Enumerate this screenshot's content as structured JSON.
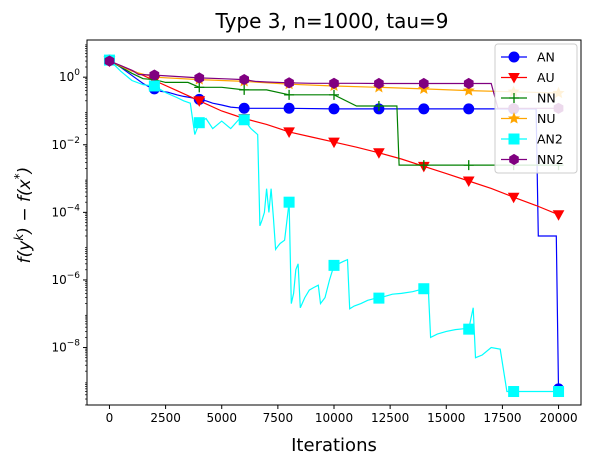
{
  "chart_data": {
    "type": "line",
    "title": "Type 3, n=1000, tau=9",
    "xlabel": "Iterations",
    "ylabel_main": "f(y",
    "ylabel_sup1": "k",
    "ylabel_mid": ") − f(x",
    "ylabel_sup2": "*",
    "ylabel_end": ")",
    "xlim": [
      -1000,
      21000
    ],
    "ylim_log10": [
      -9.7,
      1.1
    ],
    "yscale": "log",
    "xticks": [
      0,
      2500,
      5000,
      7500,
      10000,
      12500,
      15000,
      17500,
      20000
    ],
    "xtick_labels": [
      "0",
      "2500",
      "5000",
      "7500",
      "10000",
      "12500",
      "15000",
      "17500",
      "20000"
    ],
    "yticks_log10": [
      0,
      -2,
      -4,
      -6,
      -8
    ],
    "ytick_labels": [
      {
        "base": "10",
        "exp": "0"
      },
      {
        "base": "10",
        "exp": "−2"
      },
      {
        "base": "10",
        "exp": "−4"
      },
      {
        "base": "10",
        "exp": "−6"
      },
      {
        "base": "10",
        "exp": "−8"
      }
    ],
    "legend_position": "top-right",
    "grid": false,
    "series": [
      {
        "name": "AN",
        "color": "#0000ff",
        "marker": "circle",
        "points": [
          [
            0,
            3.2
          ],
          [
            400,
            2.2
          ],
          [
            800,
            1.4
          ],
          [
            1200,
            0.9
          ],
          [
            1500,
            0.65
          ],
          [
            1800,
            0.5
          ],
          [
            2000,
            0.45
          ],
          [
            2300,
            0.38
          ],
          [
            2600,
            0.36
          ],
          [
            3000,
            0.3
          ],
          [
            3300,
            0.27
          ],
          [
            3600,
            0.25
          ],
          [
            4000,
            0.22
          ],
          [
            4300,
            0.2
          ],
          [
            4600,
            0.17
          ],
          [
            5000,
            0.15
          ],
          [
            5400,
            0.13
          ],
          [
            6000,
            0.12
          ],
          [
            8000,
            0.12
          ],
          [
            10000,
            0.115
          ],
          [
            12000,
            0.115
          ],
          [
            14000,
            0.115
          ],
          [
            16000,
            0.115
          ],
          [
            18000,
            0.115
          ],
          [
            19000,
            0.115
          ],
          [
            19100,
            2e-05
          ],
          [
            19900,
            2e-05
          ],
          [
            20000,
            6e-10
          ]
        ],
        "markers": [
          [
            0,
            3.2
          ],
          [
            2000,
            0.45
          ],
          [
            4000,
            0.22
          ],
          [
            6000,
            0.12
          ],
          [
            8000,
            0.12
          ],
          [
            10000,
            0.115
          ],
          [
            12000,
            0.115
          ],
          [
            14000,
            0.115
          ],
          [
            16000,
            0.115
          ],
          [
            18000,
            0.115
          ],
          [
            20000,
            6e-10
          ]
        ]
      },
      {
        "name": "AU",
        "color": "#ff0000",
        "marker": "triangle-down",
        "points": [
          [
            0,
            3.0
          ],
          [
            1000,
            1.6
          ],
          [
            2000,
            0.8
          ],
          [
            3000,
            0.4
          ],
          [
            4000,
            0.2
          ],
          [
            5000,
            0.1
          ],
          [
            6000,
            0.06
          ],
          [
            7000,
            0.04
          ],
          [
            8000,
            0.024
          ],
          [
            9000,
            0.017
          ],
          [
            10000,
            0.012
          ],
          [
            11000,
            0.0085
          ],
          [
            12000,
            0.0058
          ],
          [
            13000,
            0.0038
          ],
          [
            14000,
            0.0023
          ],
          [
            15000,
            0.0014
          ],
          [
            16000,
            0.00085
          ],
          [
            17000,
            0.00051
          ],
          [
            18000,
            0.00028
          ],
          [
            19000,
            0.00016
          ],
          [
            20000,
            8.5e-05
          ]
        ],
        "markers": [
          [
            0,
            3.0
          ],
          [
            2000,
            0.8
          ],
          [
            4000,
            0.2
          ],
          [
            6000,
            0.06
          ],
          [
            8000,
            0.024
          ],
          [
            10000,
            0.012
          ],
          [
            12000,
            0.0058
          ],
          [
            14000,
            0.0023
          ],
          [
            16000,
            0.00085
          ],
          [
            18000,
            0.00028
          ],
          [
            20000,
            8.5e-05
          ]
        ]
      },
      {
        "name": "NN",
        "color": "#008000",
        "marker": "plus",
        "points": [
          [
            0,
            3.0
          ],
          [
            500,
            2.0
          ],
          [
            1000,
            1.3
          ],
          [
            1500,
            0.9
          ],
          [
            2000,
            0.85
          ],
          [
            2500,
            0.7
          ],
          [
            3000,
            0.7
          ],
          [
            3500,
            0.7
          ],
          [
            4000,
            0.5
          ],
          [
            5000,
            0.5
          ],
          [
            6000,
            0.42
          ],
          [
            7000,
            0.42
          ],
          [
            8000,
            0.3
          ],
          [
            9000,
            0.3
          ],
          [
            10000,
            0.3
          ],
          [
            11000,
            0.14
          ],
          [
            12000,
            0.14
          ],
          [
            12800,
            0.14
          ],
          [
            12900,
            0.0025
          ],
          [
            14000,
            0.0025
          ],
          [
            16000,
            0.0025
          ],
          [
            18000,
            0.0025
          ],
          [
            20000,
            0.0025
          ]
        ],
        "markers": [
          [
            4000,
            0.5
          ],
          [
            6000,
            0.42
          ],
          [
            8000,
            0.3
          ],
          [
            10000,
            0.3
          ],
          [
            12000,
            0.14
          ],
          [
            14000,
            0.0025
          ],
          [
            16000,
            0.0025
          ],
          [
            18000,
            0.0025
          ],
          [
            20000,
            0.0025
          ]
        ]
      },
      {
        "name": "NU",
        "color": "#ffa500",
        "marker": "star",
        "points": [
          [
            0,
            3.0
          ],
          [
            1000,
            1.5
          ],
          [
            2000,
            1.0
          ],
          [
            4000,
            0.85
          ],
          [
            6000,
            0.75
          ],
          [
            8000,
            0.62
          ],
          [
            10000,
            0.55
          ],
          [
            12000,
            0.5
          ],
          [
            14000,
            0.45
          ],
          [
            16000,
            0.4
          ],
          [
            18000,
            0.37
          ],
          [
            20000,
            0.34
          ]
        ],
        "markers": [
          [
            4000,
            0.85
          ],
          [
            6000,
            0.75
          ],
          [
            8000,
            0.62
          ],
          [
            10000,
            0.55
          ],
          [
            12000,
            0.5
          ],
          [
            14000,
            0.45
          ],
          [
            16000,
            0.4
          ],
          [
            18000,
            0.37
          ],
          [
            20000,
            0.34
          ]
        ]
      },
      {
        "name": "AN2",
        "color": "#00ffff",
        "marker": "square",
        "points": [
          [
            0,
            3.2
          ],
          [
            500,
            1.5
          ],
          [
            1000,
            0.8
          ],
          [
            1500,
            0.6
          ],
          [
            2000,
            0.55
          ],
          [
            2500,
            0.35
          ],
          [
            3000,
            0.25
          ],
          [
            3300,
            0.2
          ],
          [
            3600,
            0.17
          ],
          [
            3800,
            0.02
          ],
          [
            4000,
            0.045
          ],
          [
            4300,
            0.06
          ],
          [
            4600,
            0.03
          ],
          [
            5000,
            0.05
          ],
          [
            5400,
            0.03
          ],
          [
            5800,
            0.06
          ],
          [
            6000,
            0.055
          ],
          [
            6300,
            0.03
          ],
          [
            6600,
            0.02
          ],
          [
            6700,
            4e-05
          ],
          [
            6800,
            6e-05
          ],
          [
            6900,
            0.0001
          ],
          [
            7000,
            0.0005
          ],
          [
            7100,
            0.0001
          ],
          [
            7200,
            0.0005
          ],
          [
            7300,
            7e-05
          ],
          [
            7400,
            8e-06
          ],
          [
            7500,
            1e-05
          ],
          [
            7600,
            1.2e-05
          ],
          [
            7800,
            1.5e-05
          ],
          [
            8000,
            0.0002
          ],
          [
            8100,
            2e-07
          ],
          [
            8200,
            4e-07
          ],
          [
            8300,
            2e-06
          ],
          [
            8400,
            3e-06
          ],
          [
            8500,
            1.5e-07
          ],
          [
            8700,
            3e-07
          ],
          [
            8900,
            5e-07
          ],
          [
            9100,
            6e-07
          ],
          [
            9300,
            7e-07
          ],
          [
            9400,
            2e-07
          ],
          [
            9600,
            3e-07
          ],
          [
            9800,
            1e-06
          ],
          [
            10000,
            2.7e-06
          ],
          [
            10200,
            3e-06
          ],
          [
            10400,
            3.5e-06
          ],
          [
            10600,
            4e-06
          ],
          [
            10700,
            1.4e-07
          ],
          [
            10900,
            1.7e-07
          ],
          [
            11200,
            2e-07
          ],
          [
            11500,
            2.5e-07
          ],
          [
            11800,
            2.8e-07
          ],
          [
            12000,
            2.9e-07
          ],
          [
            12300,
            3.3e-07
          ],
          [
            12600,
            3.8e-07
          ],
          [
            13000,
            4e-07
          ],
          [
            13500,
            4.5e-07
          ],
          [
            14000,
            5.5e-07
          ],
          [
            14200,
            5.5e-07
          ],
          [
            14300,
            2e-08
          ],
          [
            14600,
            2.5e-08
          ],
          [
            15000,
            3e-08
          ],
          [
            15400,
            3.4e-08
          ],
          [
            15800,
            3.6e-08
          ],
          [
            16000,
            3.5e-08
          ],
          [
            16200,
            1.5e-07
          ],
          [
            16300,
            5e-09
          ],
          [
            16600,
            6e-09
          ],
          [
            17000,
            1e-08
          ],
          [
            17400,
            9e-09
          ],
          [
            17700,
            5e-10
          ],
          [
            18000,
            5e-10
          ],
          [
            19000,
            5e-10
          ],
          [
            20000,
            5e-10
          ]
        ],
        "markers": [
          [
            0,
            3.2
          ],
          [
            2000,
            0.55
          ],
          [
            4000,
            0.045
          ],
          [
            6000,
            0.055
          ],
          [
            8000,
            0.0002
          ],
          [
            10000,
            2.7e-06
          ],
          [
            12000,
            2.9e-07
          ],
          [
            14000,
            5.5e-07
          ],
          [
            16000,
            3.5e-08
          ],
          [
            18000,
            5e-10
          ],
          [
            20000,
            5e-10
          ]
        ]
      },
      {
        "name": "NN2",
        "color": "#800080",
        "marker": "hexagon",
        "points": [
          [
            0,
            3.0
          ],
          [
            500,
            2.2
          ],
          [
            1000,
            1.6
          ],
          [
            1300,
            1.2
          ],
          [
            2000,
            1.15
          ],
          [
            3000,
            1.05
          ],
          [
            4000,
            0.95
          ],
          [
            5000,
            0.9
          ],
          [
            6000,
            0.85
          ],
          [
            6500,
            0.75
          ],
          [
            7000,
            0.72
          ],
          [
            8000,
            0.68
          ],
          [
            9000,
            0.66
          ],
          [
            10000,
            0.66
          ],
          [
            11000,
            0.66
          ],
          [
            12000,
            0.65
          ],
          [
            13000,
            0.65
          ],
          [
            14000,
            0.65
          ],
          [
            16000,
            0.65
          ],
          [
            17000,
            0.65
          ],
          [
            17300,
            0.12
          ],
          [
            18000,
            0.12
          ],
          [
            20000,
            0.12
          ]
        ],
        "markers": [
          [
            0,
            3.0
          ],
          [
            2000,
            1.15
          ],
          [
            4000,
            0.95
          ],
          [
            6000,
            0.85
          ],
          [
            8000,
            0.68
          ],
          [
            10000,
            0.66
          ],
          [
            12000,
            0.65
          ],
          [
            14000,
            0.65
          ],
          [
            16000,
            0.65
          ],
          [
            18000,
            0.12
          ],
          [
            20000,
            0.12
          ]
        ]
      }
    ]
  }
}
